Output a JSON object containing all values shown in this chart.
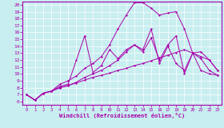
{
  "xlabel": "Windchill (Refroidissement éolien,°C)",
  "bg_color": "#c8eef0",
  "line_color": "#aa00aa",
  "xlim": [
    -0.5,
    23.5
  ],
  "ylim": [
    5.5,
    20.5
  ],
  "xticks": [
    0,
    1,
    2,
    3,
    4,
    5,
    6,
    7,
    8,
    9,
    10,
    11,
    12,
    13,
    14,
    15,
    16,
    17,
    18,
    19,
    20,
    21,
    22,
    23
  ],
  "yticks": [
    6,
    7,
    8,
    9,
    10,
    11,
    12,
    13,
    14,
    15,
    16,
    17,
    18,
    19,
    20
  ],
  "lines": [
    [
      7.0,
      6.2,
      7.2,
      7.5,
      8.0,
      8.3,
      8.7,
      9.1,
      9.5,
      9.8,
      10.1,
      10.5,
      10.8,
      11.2,
      11.5,
      11.9,
      12.3,
      12.7,
      13.1,
      13.5,
      13.0,
      10.5,
      10.0,
      9.8
    ],
    [
      7.0,
      6.2,
      7.2,
      7.5,
      8.2,
      8.5,
      12.0,
      15.5,
      10.2,
      11.2,
      13.5,
      12.2,
      13.5,
      14.2,
      13.5,
      16.5,
      11.5,
      14.0,
      11.5,
      10.5,
      13.0,
      12.5,
      12.0,
      10.5
    ],
    [
      7.0,
      6.2,
      7.2,
      7.5,
      8.0,
      8.3,
      8.8,
      9.5,
      10.0,
      10.5,
      11.2,
      12.0,
      13.2,
      14.2,
      13.2,
      15.2,
      12.0,
      14.2,
      15.5,
      10.0,
      13.0,
      13.2,
      12.0,
      10.5
    ],
    [
      7.0,
      6.2,
      7.2,
      7.5,
      8.5,
      9.0,
      9.7,
      10.8,
      11.5,
      12.5,
      14.2,
      16.5,
      18.5,
      20.3,
      20.3,
      19.5,
      18.5,
      18.8,
      19.0,
      16.5,
      13.0,
      12.2,
      10.5,
      9.8
    ]
  ]
}
